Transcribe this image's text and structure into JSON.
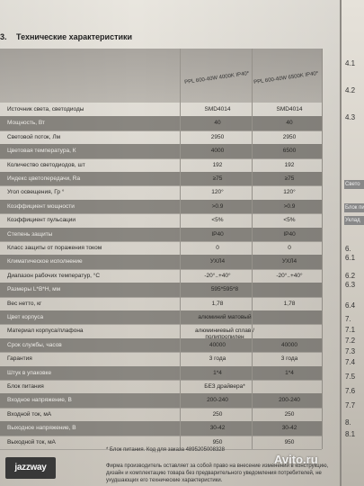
{
  "section": {
    "number": "3.",
    "title": "Технические характеристики"
  },
  "columns": [
    "PPL 600-40W 4000K IP40*",
    "PPL 600-40W 6500K IP40*"
  ],
  "rows": [
    {
      "label": "Источник света, светодиоды",
      "v1": "SMD4014",
      "v2": "SMD4014",
      "dark": false
    },
    {
      "label": "Мощность, Вт",
      "v1": "40",
      "v2": "40",
      "dark": true
    },
    {
      "label": "Световой поток, Лм",
      "v1": "2950",
      "v2": "2950",
      "dark": false
    },
    {
      "label": "Цветовая температура, К",
      "v1": "4000",
      "v2": "6500",
      "dark": true
    },
    {
      "label": "Количество светодиодов, шт",
      "v1": "192",
      "v2": "192",
      "dark": false
    },
    {
      "label": "Индекс цветопередачи, Ra",
      "v1": "≥75",
      "v2": "≥75",
      "dark": true
    },
    {
      "label": "Угол освещения, Гр °",
      "v1": "120°",
      "v2": "120°",
      "dark": false
    },
    {
      "label": "Коэффициент мощности",
      "v1": ">0.9",
      "v2": ">0.9",
      "dark": true
    },
    {
      "label": "Коэффициент пульсации",
      "v1": "<5%",
      "v2": "<5%",
      "dark": false
    },
    {
      "label": "Степень защиты",
      "v1": "IP40",
      "v2": "IP40",
      "dark": true
    },
    {
      "label": "Класс защиты от поражения током",
      "v1": "0",
      "v2": "0",
      "dark": false
    },
    {
      "label": "Климатическое исполнение",
      "v1": "УХЛ4",
      "v2": "УХЛ4",
      "dark": true
    },
    {
      "label": "Диапазон рабочих температур, °С",
      "v1": "-20°..+40°",
      "v2": "-20°..+40°",
      "dark": false
    },
    {
      "label": "Размеры L*B*H, мм",
      "v1": "",
      "v2": "",
      "mid": "595*595*8",
      "dark": true
    },
    {
      "label": "Вес нетто, кг",
      "v1": "1,78",
      "v2": "1,78",
      "dark": false
    },
    {
      "label": "Цвет корпуса",
      "v1": "",
      "v2": "",
      "mid": "алюминий матовый",
      "dark": true
    },
    {
      "label": "Материал корпуса/плафона",
      "v1": "",
      "v2": "",
      "mid": "алюминиевый сплав / полипропилен",
      "dark": false
    },
    {
      "label": "Срок службы, часов",
      "v1": "40000",
      "v2": "40000",
      "dark": true
    },
    {
      "label": "Гарантия",
      "v1": "3 года",
      "v2": "3 года",
      "dark": false
    },
    {
      "label": "Штук в упаковке",
      "v1": "1*4",
      "v2": "1*4",
      "dark": true
    },
    {
      "label": "Блок питания",
      "v1": "",
      "v2": "",
      "mid": "БЕЗ драйвера*",
      "dark": false
    },
    {
      "label": "Входное напряжение, В",
      "v1": "200-240",
      "v2": "200-240",
      "dark": true
    },
    {
      "label": "Входной ток, мА",
      "v1": "250",
      "v2": "250",
      "dark": false
    },
    {
      "label": "Выходное напряжение, В",
      "v1": "30-42",
      "v2": "30-42",
      "dark": true
    },
    {
      "label": "Выходной ток, мА",
      "v1": "950",
      "v2": "950",
      "dark": false
    }
  ],
  "footnote": "* Блок питания. Код для заказа 4895205008328",
  "logo": "jazzway",
  "firm_note": "Фирма производитель оставляет за собой право на внесение изменений в конструкцию, дизайн и комплектацию товара без предварительного уведомления потребителей, не ухудшающих его технические характеристики.",
  "watermark": "Avito.ru",
  "side": {
    "numbers": [
      "4.1",
      "4.2",
      "4.3",
      "6.",
      "6.1",
      "6.2",
      "6.3",
      "6.4",
      "7.",
      "7.1",
      "7.2",
      "7.3",
      "7.4",
      "7.5",
      "7.6",
      "7.7",
      "8.",
      "8.1"
    ],
    "boxes": [
      "Свето",
      "Блок пи",
      "Уклад"
    ]
  }
}
